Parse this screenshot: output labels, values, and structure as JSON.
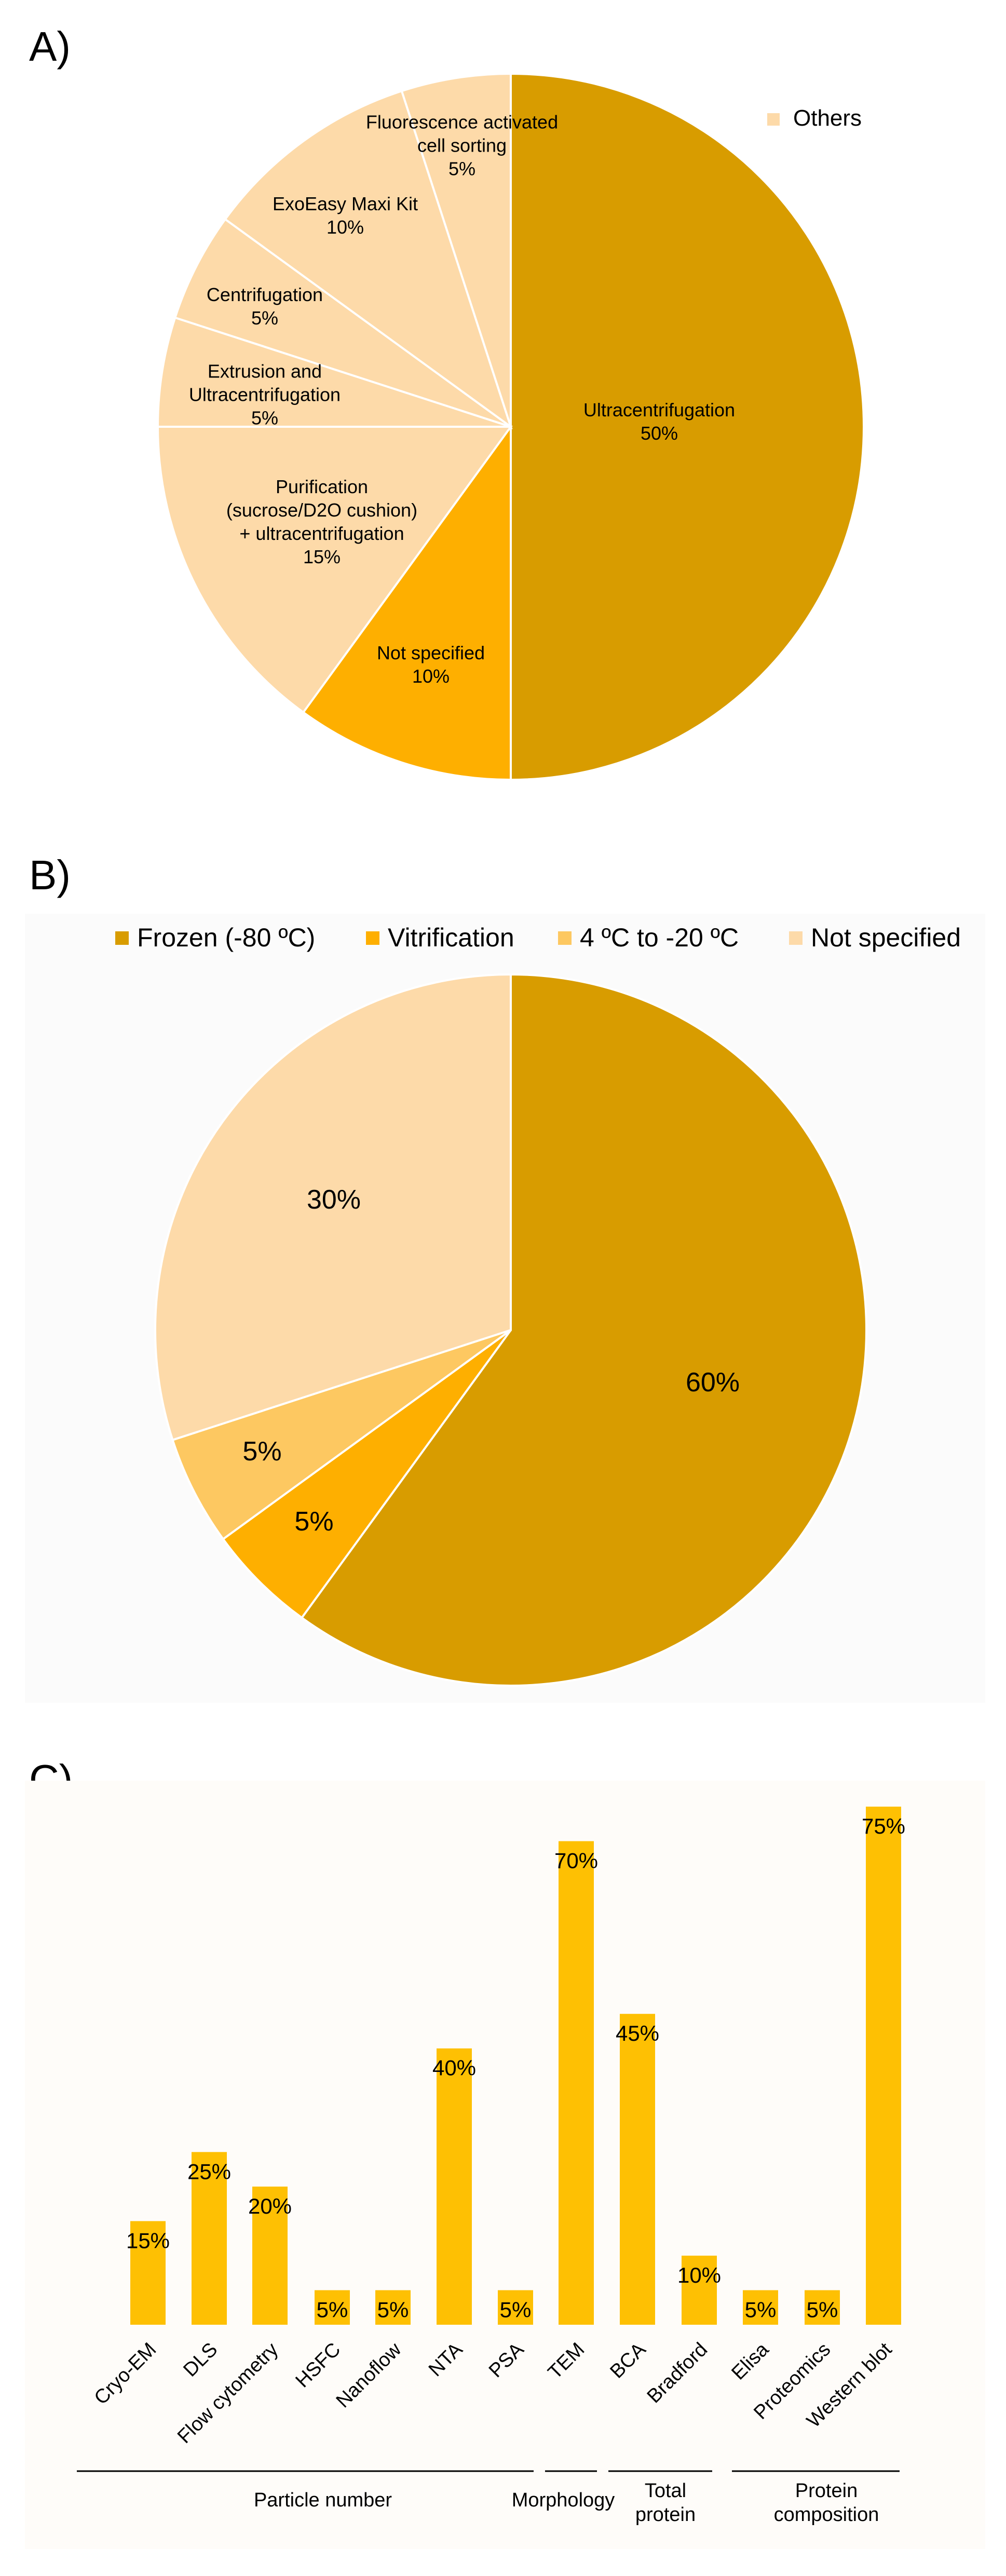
{
  "colors": {
    "dark": "#d89c00",
    "mid": "#feaf00",
    "light": "#fdc861",
    "pale": "#fddaa9",
    "bar": "#fec003",
    "line": "#000000",
    "panelB_bg": "#fbfbfb",
    "panelC_bg": "#fefcf9"
  },
  "panel_labels": {
    "a": "A)",
    "b": "B)",
    "c": "C)"
  },
  "chart_data": [
    {
      "type": "pie",
      "panel": "A",
      "legend": {
        "entries": [
          "Others"
        ],
        "position": "top-right"
      },
      "slices": [
        {
          "label": "Ultracentrifugation",
          "pct_label": "50%",
          "value": 50,
          "group": "main"
        },
        {
          "label": "Not specified",
          "pct_label": "10%",
          "value": 10,
          "group": "main"
        },
        {
          "label": "Purification (sucrose/D2O cushion) + ultracentrifugation",
          "label_lines": [
            "Purification",
            "(sucrose/D2O cushion)",
            "+ ultracentrifugation"
          ],
          "pct_label": "15%",
          "value": 15,
          "group": "others"
        },
        {
          "label": "Extrusion and Ultracentrifugation",
          "label_lines": [
            "Extrusion and",
            "Ultracentrifugation"
          ],
          "pct_label": "5%",
          "value": 5,
          "group": "others"
        },
        {
          "label": "Centrifugation",
          "label_lines": [
            "Centrifugation"
          ],
          "pct_label": "5%",
          "value": 5,
          "group": "others"
        },
        {
          "label": "ExoEasy Maxi Kit",
          "label_lines": [
            "ExoEasy Maxi  Kit"
          ],
          "pct_label": "10%",
          "value": 10,
          "group": "others"
        },
        {
          "label": "Fluorescence activated cell sorting",
          "label_lines": [
            "Fluorescence activated",
            "cell sorting"
          ],
          "pct_label": "5%",
          "value": 5,
          "group": "others"
        }
      ]
    },
    {
      "type": "pie",
      "panel": "B",
      "legend": {
        "entries": [
          "Frozen (-80 ºC)",
          "Vitrification",
          "4 ºC to -20 ºC",
          "Not specified"
        ],
        "position": "top"
      },
      "slices": [
        {
          "label": "Frozen (-80 ºC)",
          "pct_label": "60%",
          "value": 60
        },
        {
          "label": "Vitrification",
          "pct_label": "5%",
          "value": 5
        },
        {
          "label": "4 ºC to -20 ºC",
          "pct_label": "5%",
          "value": 5
        },
        {
          "label": "Not specified",
          "pct_label": "30%",
          "value": 30
        }
      ]
    },
    {
      "type": "bar",
      "panel": "C",
      "categories": [
        "Cryo-EM",
        "DLS",
        "Flow cytometry",
        "HSFC",
        "Nanoflow",
        "NTA",
        "PSA",
        "TEM",
        "BCA",
        "Bradford",
        "Elisa",
        "Proteomics",
        "Western blot"
      ],
      "values": [
        15,
        25,
        20,
        5,
        5,
        40,
        5,
        70,
        45,
        10,
        5,
        5,
        75
      ],
      "value_labels": [
        "15%",
        "25%",
        "20%",
        "5%",
        "5%",
        "40%",
        "5%",
        "70%",
        "45%",
        "10%",
        "5%",
        "5%",
        "75%"
      ],
      "ylim": [
        0,
        75
      ],
      "groups": [
        {
          "label": "Particle number",
          "from": 0,
          "to": 6
        },
        {
          "label": "Morphology",
          "from": 7,
          "to": 7
        },
        {
          "label": "Total protein",
          "label_lines": [
            "Total",
            "protein"
          ],
          "from": 8,
          "to": 9
        },
        {
          "label": "Protein composition",
          "label_lines": [
            "Protein",
            "composition"
          ],
          "from": 10,
          "to": 12
        }
      ]
    }
  ]
}
